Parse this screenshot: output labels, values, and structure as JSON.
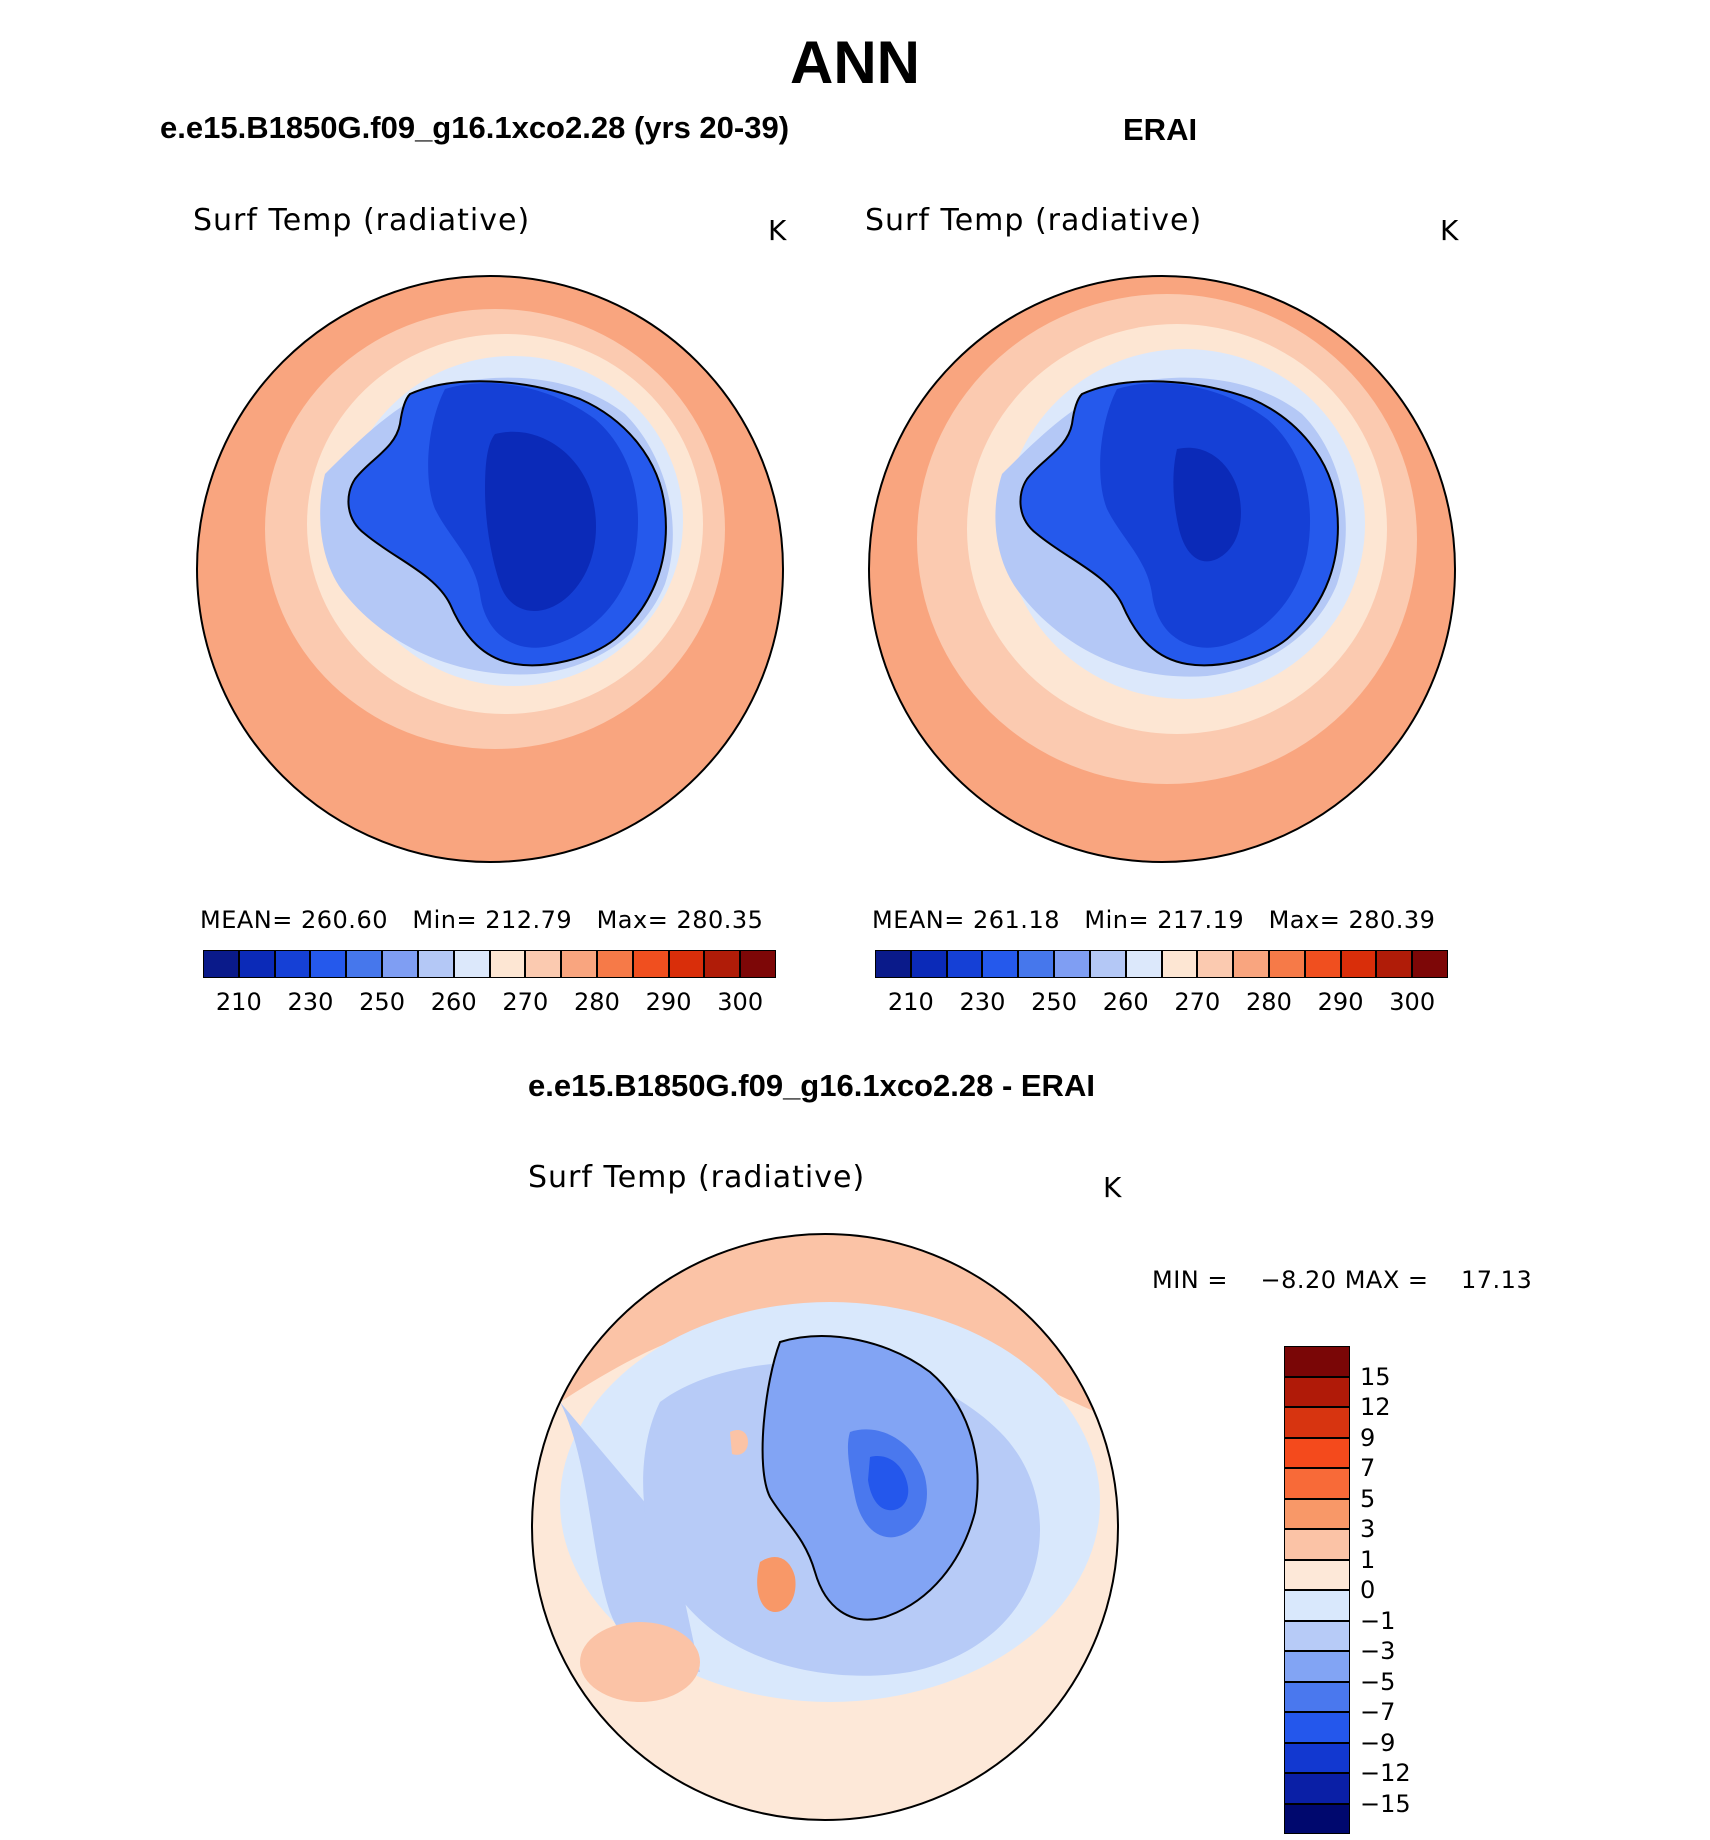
{
  "season": "ANN",
  "colors": {
    "abs_scale": [
      "#0a1a8a",
      "#0b2ab8",
      "#1540d6",
      "#2559ec",
      "#4677ec",
      "#7f9ef3",
      "#b4c8f6",
      "#dce8fb",
      "#fde6d3",
      "#fbcab0",
      "#f9a57f",
      "#f67a48",
      "#f04f1f",
      "#d92e0a",
      "#b01c08",
      "#7d0707"
    ],
    "diff_scale": [
      "#00086e",
      "#0a1fa6",
      "#1238d0",
      "#2457ec",
      "#4a78ee",
      "#82a4f4",
      "#b7cbf7",
      "#d9e8fc",
      "#fde8d8",
      "#fbc3a6",
      "#f89868",
      "#f86a38",
      "#f44a1c",
      "#d73410",
      "#b01a08",
      "#7a0606"
    ]
  },
  "panels": {
    "left": {
      "title": "e.e15.B1850G.f09_g16.1xco2.28 (yrs 20-39)",
      "variable": "Surf Temp (radiative)",
      "unit": "K",
      "stats": {
        "mean_label": "MEAN=",
        "mean": "260.60",
        "min_label": "Min=",
        "min": "212.79",
        "max_label": "Max=",
        "max": "280.35"
      }
    },
    "right": {
      "title": "ERAI",
      "variable": "Surf Temp (radiative)",
      "unit": "K",
      "stats": {
        "mean_label": "MEAN=",
        "mean": "261.18",
        "min_label": "Min=",
        "min": "217.19",
        "max_label": "Max=",
        "max": "280.39"
      }
    },
    "diff": {
      "title": "e.e15.B1850G.f09_g16.1xco2.28 - ERAI",
      "variable": "Surf Temp (radiative)",
      "unit": "K",
      "min_label": "MIN =",
      "min": "−8.20",
      "max_label": "MAX =",
      "max": "17.13"
    }
  },
  "abs_colorbar_ticks": [
    "210",
    "230",
    "250",
    "260",
    "270",
    "280",
    "290",
    "300"
  ],
  "diff_colorbar_ticks": [
    "15",
    "12",
    "9",
    "7",
    "5",
    "3",
    "1",
    "0",
    "−1",
    "−3",
    "−5",
    "−7",
    "−9",
    "−12",
    "−15"
  ]
}
